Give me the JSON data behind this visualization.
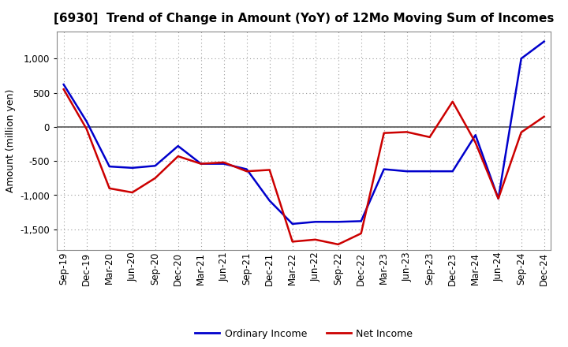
{
  "title": "[6930]  Trend of Change in Amount (YoY) of 12Mo Moving Sum of Incomes",
  "ylabel": "Amount (million yen)",
  "x_labels": [
    "Sep-19",
    "Dec-19",
    "Mar-20",
    "Jun-20",
    "Sep-20",
    "Dec-20",
    "Mar-21",
    "Jun-21",
    "Sep-21",
    "Dec-21",
    "Mar-22",
    "Jun-22",
    "Sep-22",
    "Dec-22",
    "Mar-23",
    "Jun-23",
    "Sep-23",
    "Dec-23",
    "Mar-24",
    "Jun-24",
    "Sep-24",
    "Dec-24"
  ],
  "ordinary_income": [
    620,
    80,
    -580,
    -600,
    -570,
    -280,
    -540,
    -540,
    -620,
    -1080,
    -1420,
    -1390,
    -1390,
    -1380,
    -620,
    -650,
    -650,
    -650,
    -120,
    -1050,
    1000,
    1250
  ],
  "net_income": [
    550,
    -30,
    -900,
    -960,
    -750,
    -430,
    -540,
    -520,
    -650,
    -630,
    -1680,
    -1650,
    -1720,
    -1560,
    -90,
    -75,
    -150,
    370,
    -230,
    -1050,
    -80,
    150
  ],
  "ordinary_income_color": "#0000cc",
  "net_income_color": "#cc0000",
  "ylim": [
    -1800,
    1400
  ],
  "yticks": [
    -1500,
    -1000,
    -500,
    0,
    500,
    1000
  ],
  "background_color": "#ffffff",
  "plot_bg_color": "#ffffff",
  "grid_color": "#999999",
  "zero_line_color": "#555555",
  "spine_color": "#888888",
  "title_fontsize": 11,
  "axis_fontsize": 8.5,
  "ylabel_fontsize": 9,
  "legend_fontsize": 9,
  "linewidth": 1.8
}
